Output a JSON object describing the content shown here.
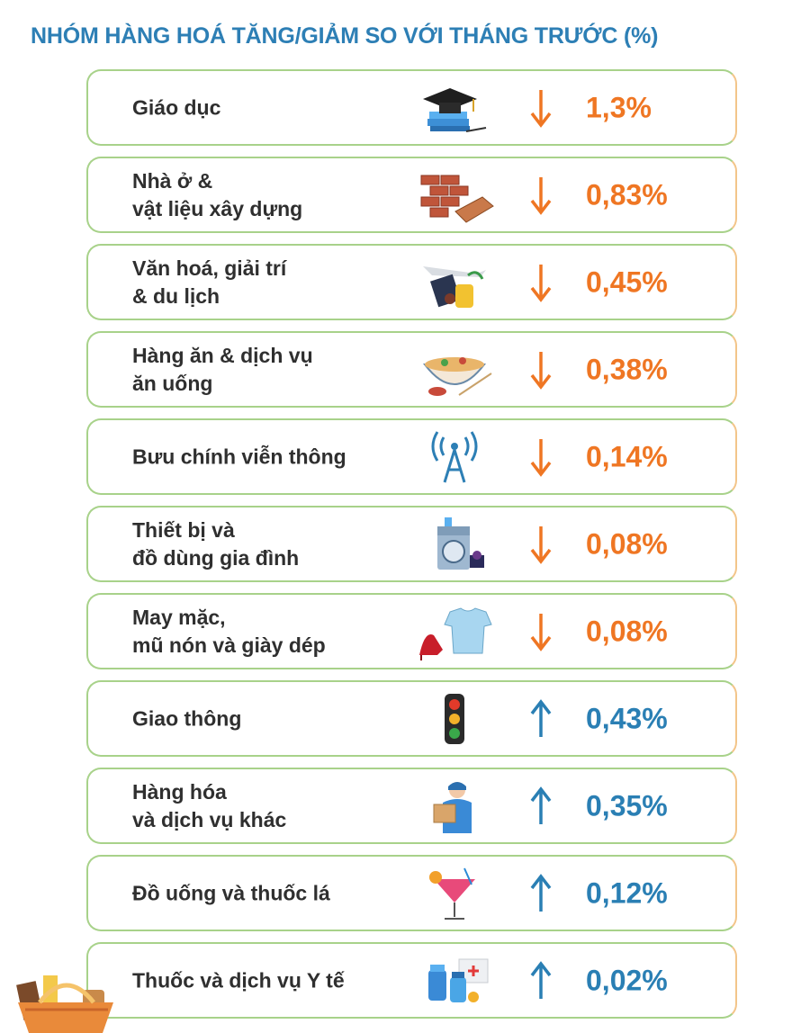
{
  "title": "NHÓM HÀNG HOÁ TĂNG/GIẢM SO VỚI THÁNG TRƯỚC (%)",
  "colors": {
    "down": "#ef7623",
    "up": "#2a7fb4",
    "title": "#2d7fb5"
  },
  "chart_data": {
    "type": "table",
    "title": "NHÓM HÀNG HOÁ TĂNG/GIẢM SO VỚI THÁNG TRƯỚC (%)",
    "unit": "%",
    "rows": [
      {
        "name": "Giáo dục",
        "lines": [
          "Giáo dục"
        ],
        "direction": "down",
        "value": 1.3,
        "display": "1,3%",
        "icon": "graduation-cap-books-icon"
      },
      {
        "name": "Nhà ở & vật liệu xây dựng",
        "lines": [
          "Nhà ở &",
          "vật liệu xây dựng"
        ],
        "direction": "down",
        "value": 0.83,
        "display": "0,83%",
        "icon": "bricks-icon"
      },
      {
        "name": "Văn hoá, giải trí & du lịch",
        "lines": [
          "Văn hoá, giải trí",
          "& du lịch"
        ],
        "direction": "down",
        "value": 0.45,
        "display": "0,45%",
        "icon": "travel-plane-suitcase-icon"
      },
      {
        "name": "Hàng ăn & dịch vụ ăn uống",
        "lines": [
          "Hàng ăn & dịch vụ",
          "ăn uống"
        ],
        "direction": "down",
        "value": 0.38,
        "display": "0,38%",
        "icon": "noodle-bowl-icon"
      },
      {
        "name": "Bưu chính viễn thông",
        "lines": [
          "Bưu chính viễn thông"
        ],
        "direction": "down",
        "value": 0.14,
        "display": "0,14%",
        "icon": "antenna-tower-icon"
      },
      {
        "name": "Thiết bị và đồ dùng gia đình",
        "lines": [
          "Thiết bị và",
          "đồ dùng gia đình"
        ],
        "direction": "down",
        "value": 0.08,
        "display": "0,08%",
        "icon": "washing-machine-icon"
      },
      {
        "name": "May mặc, mũ nón và giày dép",
        "lines": [
          "May mặc,",
          "mũ nón và giày dép"
        ],
        "direction": "down",
        "value": 0.08,
        "display": "0,08%",
        "icon": "tshirt-heels-icon"
      },
      {
        "name": "Giao thông",
        "lines": [
          "Giao thông"
        ],
        "direction": "up",
        "value": 0.43,
        "display": "0,43%",
        "icon": "traffic-light-icon"
      },
      {
        "name": "Hàng hóa và dịch vụ khác",
        "lines": [
          "Hàng hóa",
          "và dịch vụ khác"
        ],
        "direction": "up",
        "value": 0.35,
        "display": "0,35%",
        "icon": "delivery-person-icon"
      },
      {
        "name": "Đồ uống và thuốc lá",
        "lines": [
          "Đồ uống và thuốc lá"
        ],
        "direction": "up",
        "value": 0.12,
        "display": "0,12%",
        "icon": "cocktail-icon"
      },
      {
        "name": "Thuốc và dịch vụ Y tế",
        "lines": [
          "Thuốc và dịch vụ Y tế"
        ],
        "direction": "up",
        "value": 0.02,
        "display": "0,02%",
        "icon": "medicine-bottles-icon"
      }
    ]
  }
}
